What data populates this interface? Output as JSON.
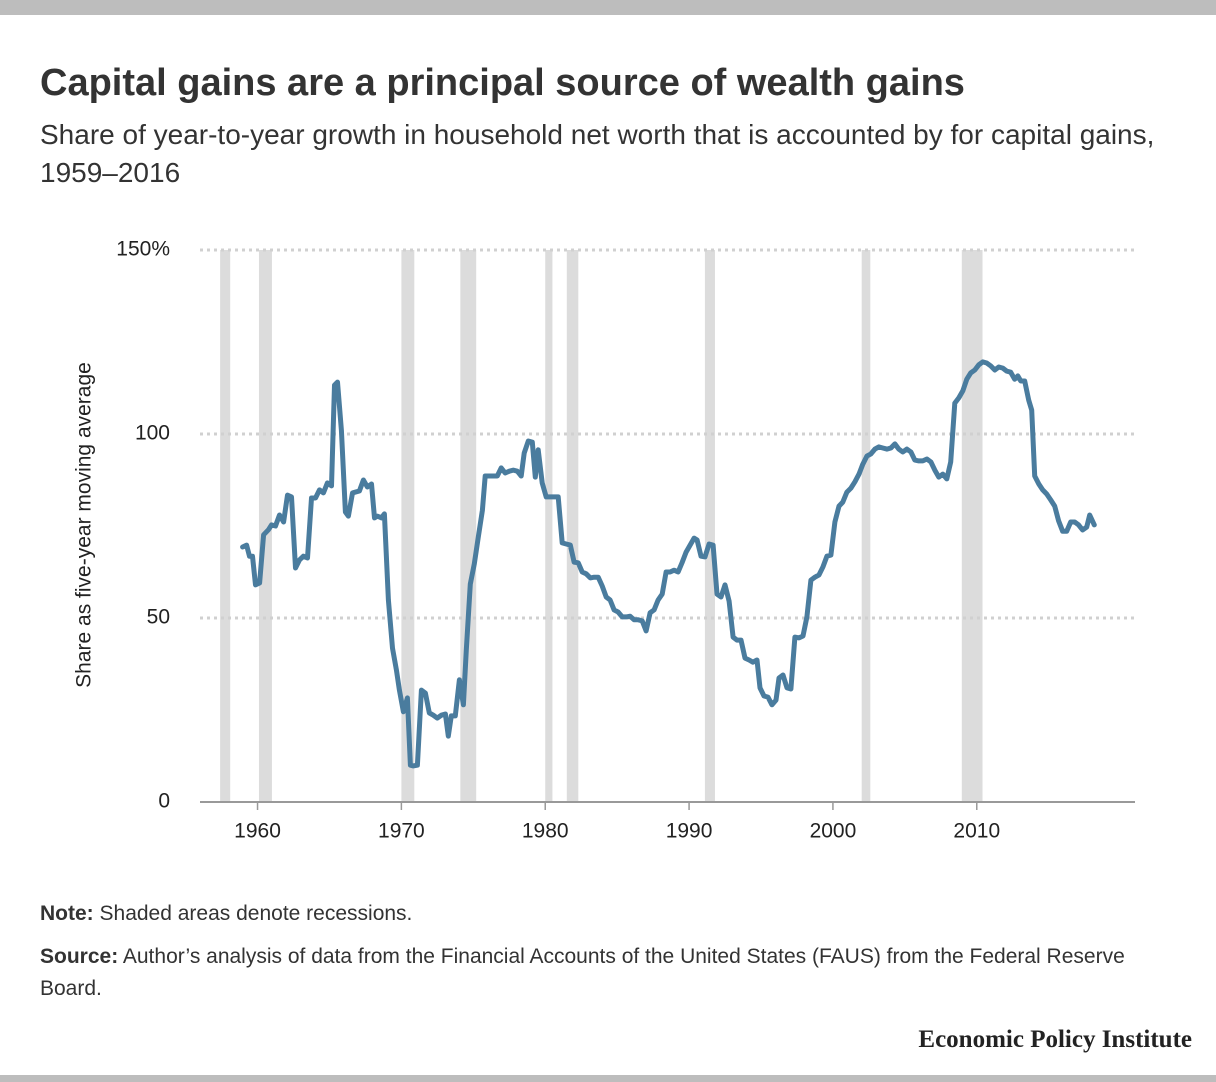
{
  "chart_data": {
    "type": "line",
    "title": "Capital gains are a principal source of wealth gains",
    "subtitle": "Share of year-to-year growth in household net worth that is accounted by for capital gains, 1959–2016",
    "y_label": "Share as five-year moving average",
    "note_label": "Note:",
    "note": "Shaded areas denote recessions.",
    "source_label": "Source:",
    "source": "Author’s analysis of data from the Financial Accounts of the United States (FAUS) from the Federal Reserve Board.",
    "brand": "Economic Policy Institute",
    "color": "#4a7c9e",
    "recession_color": "#dcdcdc",
    "grid": true,
    "xlim": [
      1956,
      2021
    ],
    "ylim": [
      0,
      150
    ],
    "xticks": [
      1960,
      1970,
      1980,
      1990,
      2000,
      2010
    ],
    "yticks": [
      0,
      50,
      100,
      {
        "value": 150,
        "label": "150%"
      }
    ],
    "recessions": [
      [
        1957.4,
        1958.1
      ],
      [
        1960.1,
        1961.0
      ],
      [
        1970.0,
        1970.9
      ],
      [
        1974.1,
        1975.2
      ],
      [
        1980.0,
        1980.5
      ],
      [
        1981.5,
        1982.3
      ],
      [
        1991.1,
        1991.8
      ],
      [
        2002.0,
        2002.6
      ],
      [
        2008.96,
        2010.4
      ]
    ],
    "x": [
      1958.96,
      1959.24,
      1959.44,
      1959.65,
      1959.86,
      1960.14,
      1960.42,
      1960.76,
      1960.97,
      1961.25,
      1961.53,
      1961.81,
      1962.08,
      1962.36,
      1962.64,
      1962.92,
      1963.19,
      1963.47,
      1963.75,
      1964.03,
      1964.31,
      1964.58,
      1964.86,
      1965.14,
      1965.35,
      1965.56,
      1965.83,
      1966.11,
      1966.32,
      1966.6,
      1966.81,
      1967.08,
      1967.36,
      1967.64,
      1967.92,
      1968.13,
      1968.33,
      1968.61,
      1968.82,
      1969.1,
      1969.38,
      1969.65,
      1969.86,
      1970.14,
      1970.42,
      1970.63,
      1970.83,
      1971.11,
      1971.39,
      1971.67,
      1971.94,
      1972.22,
      1972.5,
      1972.78,
      1973.06,
      1973.26,
      1973.47,
      1973.75,
      1974.03,
      1974.31,
      1974.51,
      1974.79,
      1975.07,
      1975.35,
      1975.63,
      1975.83,
      1976.11,
      1976.39,
      1976.67,
      1976.94,
      1977.22,
      1977.5,
      1977.78,
      1978.06,
      1978.33,
      1978.54,
      1978.82,
      1979.1,
      1979.31,
      1979.51,
      1979.79,
      1980.07,
      1980.35,
      1980.63,
      1980.9,
      1981.18,
      1981.46,
      1981.74,
      1982.01,
      1982.29,
      1982.57,
      1982.85,
      1983.13,
      1983.4,
      1983.68,
      1983.96,
      1984.24,
      1984.51,
      1984.79,
      1985.07,
      1985.35,
      1985.63,
      1985.9,
      1986.18,
      1986.46,
      1986.74,
      1987.01,
      1987.29,
      1987.57,
      1987.85,
      1988.13,
      1988.4,
      1988.68,
      1988.96,
      1989.24,
      1989.51,
      1989.79,
      1990.07,
      1990.35,
      1990.56,
      1990.83,
      1991.11,
      1991.39,
      1991.67,
      1991.94,
      1992.22,
      1992.5,
      1992.78,
      1993.06,
      1993.33,
      1993.61,
      1993.89,
      1994.17,
      1994.44,
      1994.72,
      1994.93,
      1995.21,
      1995.49,
      1995.76,
      1996.04,
      1996.25,
      1996.53,
      1996.81,
      1997.08,
      1997.36,
      1997.64,
      1997.92,
      1998.19,
      1998.47,
      1998.75,
      1999.03,
      1999.31,
      1999.58,
      1999.86,
      2000.14,
      2000.42,
      2000.69,
      2000.97,
      2001.25,
      2001.53,
      2001.81,
      2002.08,
      2002.36,
      2002.64,
      2002.92,
      2003.19,
      2003.47,
      2003.75,
      2004.03,
      2004.31,
      2004.58,
      2004.86,
      2005.14,
      2005.42,
      2005.69,
      2005.97,
      2006.25,
      2006.53,
      2006.81,
      2007.08,
      2007.36,
      2007.64,
      2007.92,
      2008.19,
      2008.47,
      2008.75,
      2009.03,
      2009.31,
      2009.58,
      2009.86,
      2010.14,
      2010.42,
      2010.69,
      2010.97,
      2011.25,
      2011.53,
      2011.81,
      2012.08,
      2012.36,
      2012.64,
      2012.85,
      2013.06,
      2013.33,
      2013.61,
      2013.82,
      2014.03,
      2014.31,
      2014.58,
      2014.86,
      2015.14,
      2015.42,
      2015.69,
      2015.97,
      2016.25,
      2016.53,
      2016.81,
      2017.08,
      2017.36,
      2017.64,
      2017.85,
      2018.17
    ],
    "values": [
      69.3,
      69.8,
      66.8,
      66.8,
      59,
      59.5,
      72.6,
      74,
      75.3,
      75,
      78,
      76.1,
      83.4,
      82.9,
      63.6,
      65.8,
      66.8,
      66.3,
      82.6,
      82.6,
      84.8,
      84,
      86.7,
      85.9,
      113.3,
      114.1,
      101,
      78.8,
      77.7,
      84,
      84.2,
      84.5,
      87.5,
      85.6,
      86.4,
      77.2,
      77.7,
      77.2,
      78.3,
      54.9,
      41.8,
      35.9,
      30.4,
      24.5,
      28.3,
      10,
      9.8,
      10,
      30.4,
      29.6,
      24.2,
      23.6,
      22.8,
      23.6,
      23.9,
      17.9,
      23.4,
      23.4,
      33.2,
      26.4,
      41.3,
      59.2,
      64.7,
      72,
      79.3,
      88.6,
      88.6,
      88.6,
      88.6,
      90.8,
      89.4,
      89.9,
      90.2,
      89.9,
      88.6,
      94.8,
      98.1,
      97.8,
      88.3,
      95.7,
      86.7,
      82.9,
      82.9,
      82.9,
      82.9,
      70.4,
      70.1,
      69.8,
      65.2,
      65,
      62.5,
      62,
      60.9,
      61.1,
      61.1,
      58.7,
      55.7,
      54.9,
      52.2,
      51.6,
      50.3,
      50.3,
      50.5,
      49.5,
      49.5,
      49.2,
      46.5,
      51.4,
      52.2,
      54.9,
      56.5,
      62.5,
      62.5,
      63,
      62.5,
      65,
      67.9,
      69.8,
      71.7,
      71.2,
      66.8,
      66.6,
      70.1,
      69.8,
      56.5,
      55.7,
      59,
      54.6,
      44.8,
      44,
      44,
      39.1,
      38.6,
      38,
      38.6,
      31,
      28.8,
      28.5,
      26.4,
      27.7,
      33.7,
      34.5,
      31,
      30.7,
      44.8,
      44.6,
      45.1,
      50.3,
      60.3,
      61.1,
      61.7,
      63.9,
      66.8,
      67.1,
      76.1,
      80.4,
      81.5,
      84.2,
      85.3,
      87,
      89.1,
      91.8,
      94,
      94.6,
      95.9,
      96.5,
      96.2,
      95.9,
      96.2,
      97.3,
      95.9,
      95.1,
      95.9,
      95.1,
      92.9,
      92.7,
      92.7,
      93.2,
      92.4,
      90.2,
      88.3,
      89.1,
      87.8,
      92.4,
      108.4,
      109.8,
      111.7,
      114.9,
      116.6,
      117.4,
      118.8,
      119.6,
      119.3,
      118.5,
      117.4,
      118.2,
      117.9,
      117.1,
      116.8,
      114.9,
      115.8,
      114.4,
      114.4,
      109.2,
      106.5,
      88.6,
      86.4,
      84.8,
      83.7,
      82.1,
      80.4,
      76.4,
      73.6,
      73.6,
      76.1,
      76.1,
      75.3,
      73.9,
      74.7,
      78,
      75.3
    ]
  }
}
